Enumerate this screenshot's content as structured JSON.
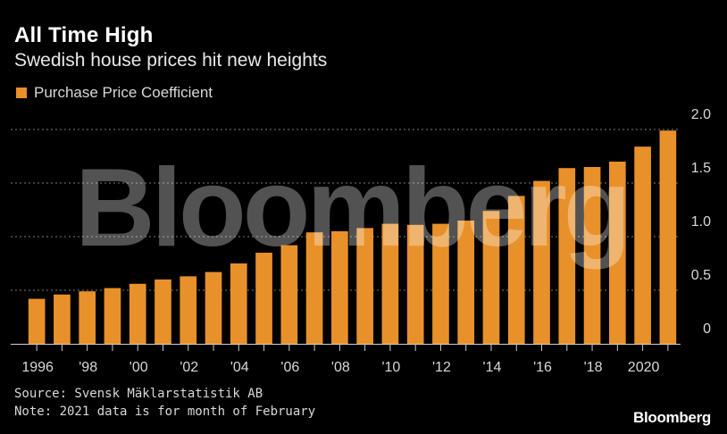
{
  "chart_data": {
    "type": "bar",
    "title": "All Time High",
    "subtitle": "Swedish house prices hit new heights",
    "legend": [
      "Purchase Price Coefficient"
    ],
    "legend_placement": "top-left",
    "categories": [
      "1996",
      "1997",
      "1998",
      "1999",
      "2000",
      "2001",
      "2002",
      "2003",
      "2004",
      "2005",
      "2006",
      "2007",
      "2008",
      "2009",
      "2010",
      "2011",
      "2012",
      "2013",
      "2014",
      "2015",
      "2016",
      "2017",
      "2018",
      "2019",
      "2020",
      "2021"
    ],
    "values": [
      0.42,
      0.46,
      0.49,
      0.52,
      0.56,
      0.6,
      0.63,
      0.67,
      0.75,
      0.85,
      0.92,
      1.04,
      1.05,
      1.08,
      1.12,
      1.11,
      1.12,
      1.15,
      1.24,
      1.38,
      1.52,
      1.64,
      1.65,
      1.7,
      1.84,
      1.99
    ],
    "x_tick_labels": [
      {
        "index": 0,
        "label": "1996"
      },
      {
        "index": 2,
        "label": "'98"
      },
      {
        "index": 4,
        "label": "'00"
      },
      {
        "index": 6,
        "label": "'02"
      },
      {
        "index": 8,
        "label": "'04"
      },
      {
        "index": 10,
        "label": "'06"
      },
      {
        "index": 12,
        "label": "'08"
      },
      {
        "index": 14,
        "label": "'10"
      },
      {
        "index": 16,
        "label": "'12"
      },
      {
        "index": 18,
        "label": "'14"
      },
      {
        "index": 20,
        "label": "'16"
      },
      {
        "index": 22,
        "label": "'18"
      },
      {
        "index": 24,
        "label": "2020"
      }
    ],
    "y_ticks": [
      {
        "value": 0,
        "label": "0"
      },
      {
        "value": 0.5,
        "label": "0.5"
      },
      {
        "value": 1.0,
        "label": "1.0"
      },
      {
        "value": 1.5,
        "label": "1.5"
      },
      {
        "value": 2.0,
        "label": "2.0"
      }
    ],
    "ylim": [
      0,
      2.0
    ],
    "grid": true,
    "xlabel": "",
    "ylabel": ""
  },
  "source": "Source: Svensk Mäklarstatistik AB",
  "note": "Note: 2021 data is for month of February",
  "watermark": "Bloomberg",
  "brand": "Bloomberg",
  "colors": {
    "bar": "#e8912a",
    "background": "#000000",
    "grid": "#7a7a7a",
    "axis": "#cfcfcf"
  }
}
